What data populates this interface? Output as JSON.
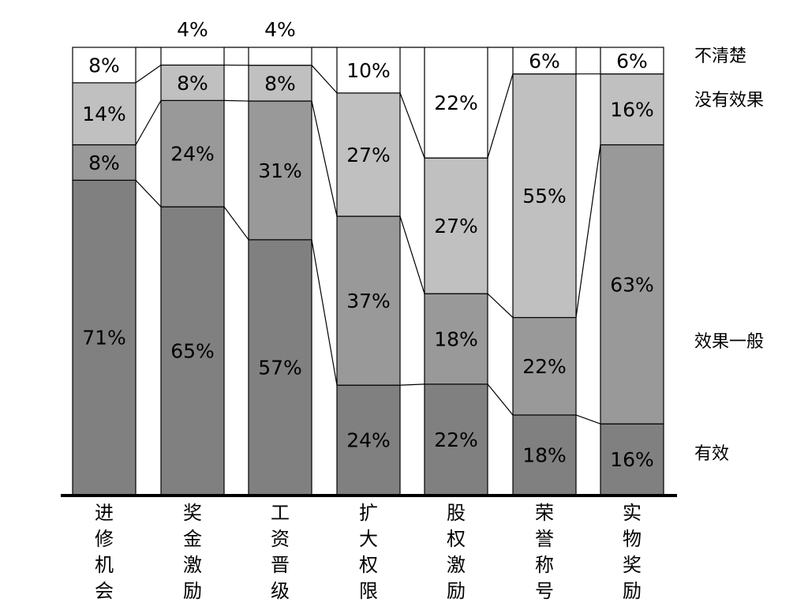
{
  "chart_data": {
    "type": "bar",
    "stacked": true,
    "percent_stacked": true,
    "categories": [
      "进修机会",
      "奖金激励",
      "工资晋级",
      "扩大权限",
      "股权激励",
      "荣誉称号",
      "实物奖励"
    ],
    "series": [
      {
        "name": "有效",
        "values": [
          71,
          65,
          57,
          24,
          22,
          18,
          16
        ],
        "color": "#808080"
      },
      {
        "name": "效果一般",
        "values": [
          8,
          24,
          31,
          37,
          18,
          22,
          63
        ],
        "color": "#999999"
      },
      {
        "name": "没有效果",
        "values": [
          14,
          8,
          8,
          27,
          27,
          55,
          16
        ],
        "color": "#c0c0c0"
      },
      {
        "name": "不清楚",
        "values": [
          8,
          4,
          4,
          10,
          22,
          6,
          6
        ],
        "color": "#ffffff"
      }
    ],
    "ylim": [
      0,
      100
    ],
    "grid": false,
    "legend_position": "right",
    "title": "",
    "xlabel": "",
    "ylabel": ""
  }
}
